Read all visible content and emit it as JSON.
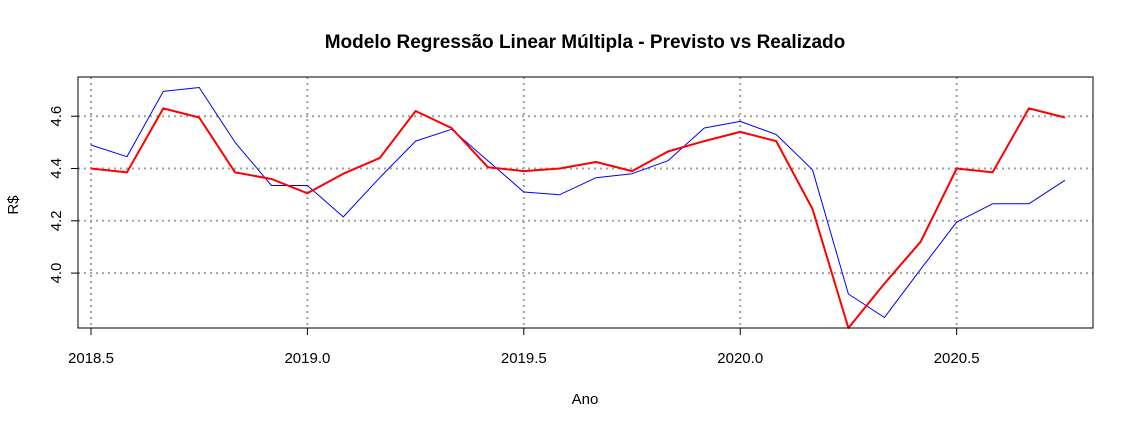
{
  "chart_data": {
    "type": "line",
    "title": "Modelo Regressão Linear Múltipla - Previsto vs Realizado",
    "xlabel": "Ano",
    "ylabel": "R$",
    "xlim": [
      2018.47,
      2020.815
    ],
    "ylim": [
      3.79,
      4.75
    ],
    "x_ticks": [
      2018.5,
      2019.0,
      2019.5,
      2020.0,
      2020.5
    ],
    "x_tick_labels": [
      "2018.5",
      "2019.0",
      "2019.5",
      "2020.0",
      "2020.5"
    ],
    "y_ticks": [
      4.0,
      4.2,
      4.4,
      4.6
    ],
    "y_tick_labels": [
      "4.0",
      "4.2",
      "4.4",
      "4.6"
    ],
    "grid": true,
    "grid_style": "dotted",
    "colors": {
      "blue": "#0000ff",
      "red": "#ff0000",
      "grid": "#a0a0a0"
    },
    "x": [
      2018.5,
      2018.583,
      2018.667,
      2018.75,
      2018.833,
      2018.917,
      2019.0,
      2019.083,
      2019.167,
      2019.25,
      2019.333,
      2019.417,
      2019.5,
      2019.583,
      2019.667,
      2019.75,
      2019.833,
      2019.917,
      2020.0,
      2020.083,
      2020.167,
      2020.25,
      2020.333,
      2020.417,
      2020.5,
      2020.583,
      2020.667,
      2020.75
    ],
    "series": [
      {
        "color": "#0000ff",
        "width": 1,
        "values": [
          4.49,
          4.445,
          4.695,
          4.71,
          4.5,
          4.335,
          4.335,
          4.215,
          4.365,
          4.505,
          4.55,
          4.43,
          4.31,
          4.3,
          4.365,
          4.38,
          4.43,
          4.555,
          4.58,
          4.53,
          4.395,
          3.92,
          3.83,
          4.015,
          4.195,
          4.265,
          4.265,
          4.355
        ]
      },
      {
        "color": "#ff0000",
        "width": 2,
        "values": [
          4.4,
          4.385,
          4.63,
          4.595,
          4.385,
          4.36,
          4.305,
          4.38,
          4.44,
          4.62,
          4.555,
          4.405,
          4.39,
          4.4,
          4.425,
          4.39,
          4.465,
          4.505,
          4.54,
          4.505,
          4.245,
          3.79,
          3.96,
          4.12,
          4.4,
          4.385,
          4.63,
          4.595
        ]
      }
    ]
  }
}
